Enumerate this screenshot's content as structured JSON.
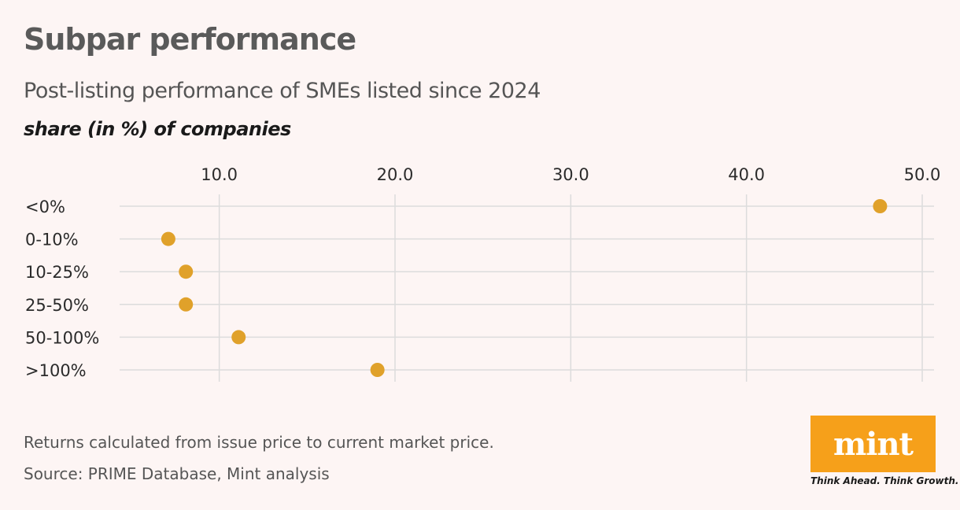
{
  "header": {
    "title": "Subpar performance",
    "subtitle": "Post-listing performance of SMEs listed since 2024",
    "unit_label": "share (in %) of companies"
  },
  "footer": {
    "note": "Returns calculated from issue price to current market price.",
    "source": "Source: PRIME Database, Mint analysis"
  },
  "brand": {
    "logo": "mint",
    "tagline": "Think Ahead. Think Growth.",
    "logo_color": "#f6a01a"
  },
  "colors": {
    "dot": "#e0a12a",
    "grid": "#dcdcdc"
  },
  "chart_data": {
    "type": "scatter",
    "orientation": "dot-plot",
    "categories": [
      "<0%",
      "0-10%",
      "10-25%",
      "25-50%",
      "50-100%",
      ">100%"
    ],
    "values": [
      47.6,
      7.1,
      8.1,
      8.1,
      11.1,
      19.0
    ],
    "xlim": [
      4.4,
      50.6
    ],
    "xticks": [
      10,
      20,
      30,
      40,
      50
    ],
    "xtick_labels": [
      "10.0",
      "20.0",
      "30.0",
      "40.0",
      "50.0"
    ],
    "xaxis_position": "top",
    "grid": true
  }
}
